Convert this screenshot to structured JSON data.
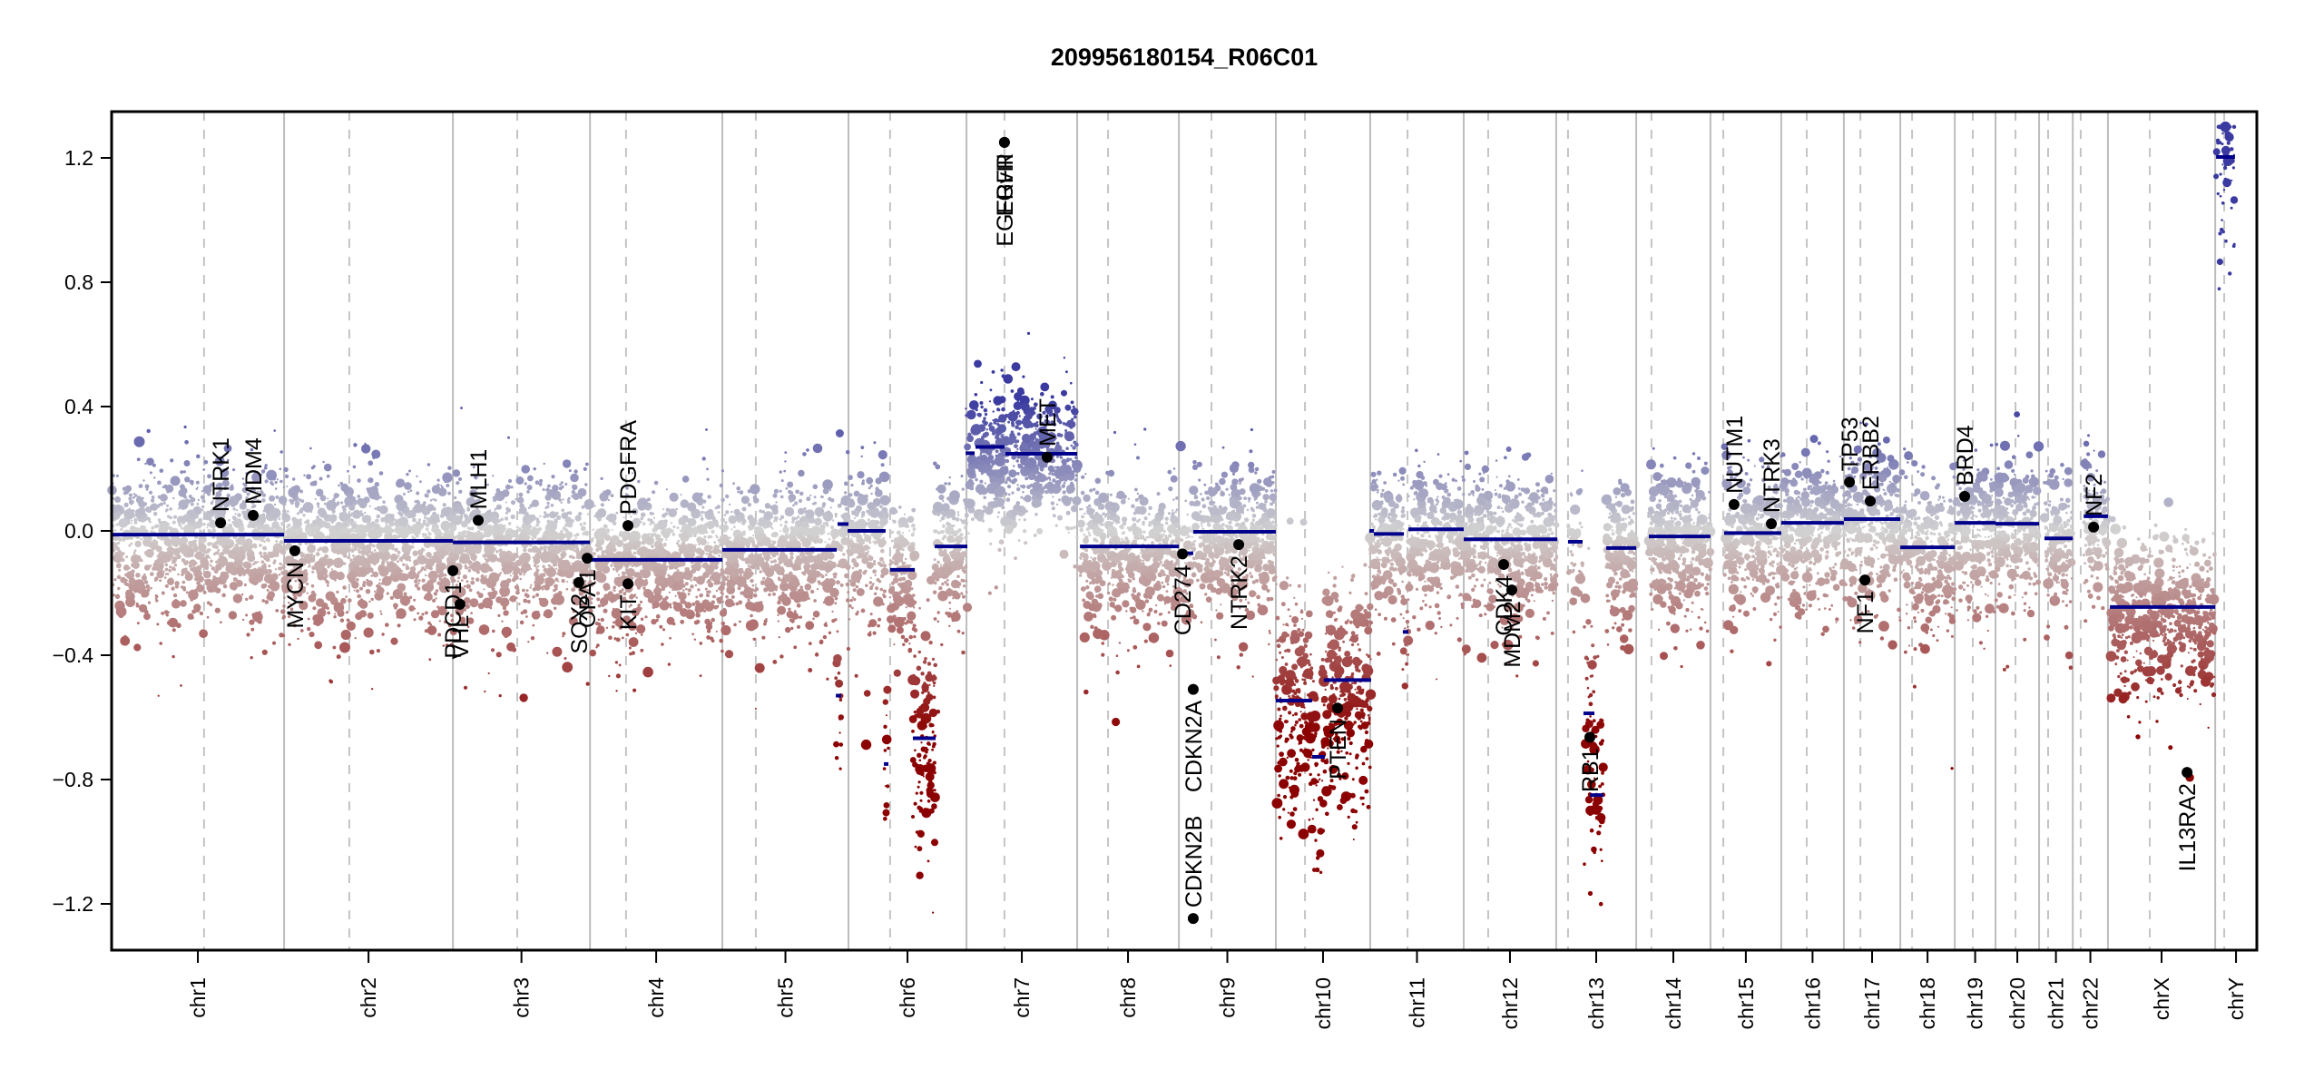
{
  "chart_data": {
    "type": "scatter",
    "title": "209956180154_R06C01",
    "xlabel": "",
    "ylabel": "",
    "ylim": [
      -1.35,
      1.35
    ],
    "yticks": [
      1.2,
      0.8,
      0.4,
      0.0,
      -0.4,
      -0.8,
      -1.2
    ],
    "ytick_labels": [
      "1.2",
      "0.8",
      "0.4",
      "0.0",
      "−0.4",
      "−0.8",
      "−1.2"
    ],
    "x_units": "relative genome position (0-1)",
    "colors": {
      "segment": "#00008b",
      "gain": "#3a3aa0",
      "neutral": "#d2d2d2",
      "loss": "#8b0000",
      "gene_marker": "#000000",
      "chromosome_separator": "#bdbdbd",
      "centromere": "#c4c4c4"
    },
    "chromosomes": [
      {
        "name": "chr1",
        "start": 0.0,
        "end": 0.0804,
        "centromere": 0.0431
      },
      {
        "name": "chr2",
        "start": 0.0804,
        "end": 0.1591,
        "centromere": 0.1108
      },
      {
        "name": "chr3",
        "start": 0.1591,
        "end": 0.223,
        "centromere": 0.1891
      },
      {
        "name": "chr4",
        "start": 0.223,
        "end": 0.2847,
        "centromere": 0.2398
      },
      {
        "name": "chr5",
        "start": 0.2847,
        "end": 0.3435,
        "centromere": 0.3003
      },
      {
        "name": "chr6",
        "start": 0.3435,
        "end": 0.3985,
        "centromere": 0.3629
      },
      {
        "name": "chr7",
        "start": 0.3985,
        "end": 0.4501,
        "centromere": 0.4162
      },
      {
        "name": "chr8",
        "start": 0.4501,
        "end": 0.4975,
        "centromere": 0.4645
      },
      {
        "name": "chr9",
        "start": 0.4975,
        "end": 0.5427,
        "centromere": 0.5127
      },
      {
        "name": "chr10",
        "start": 0.5427,
        "end": 0.5867,
        "centromere": 0.5563
      },
      {
        "name": "chr11",
        "start": 0.5867,
        "end": 0.6303,
        "centromere": 0.6041
      },
      {
        "name": "chr12",
        "start": 0.6303,
        "end": 0.6734,
        "centromere": 0.6417
      },
      {
        "name": "chr13",
        "start": 0.6734,
        "end": 0.7107,
        "centromere": 0.6789
      },
      {
        "name": "chr14",
        "start": 0.7107,
        "end": 0.7453,
        "centromere": 0.7178
      },
      {
        "name": "chr15",
        "start": 0.7453,
        "end": 0.7783,
        "centromere": 0.7513
      },
      {
        "name": "chr16",
        "start": 0.7783,
        "end": 0.8075,
        "centromere": 0.7902
      },
      {
        "name": "chr17",
        "start": 0.8075,
        "end": 0.8338,
        "centromere": 0.8152
      },
      {
        "name": "chr18",
        "start": 0.8338,
        "end": 0.8592,
        "centromere": 0.8393
      },
      {
        "name": "chr19",
        "start": 0.8592,
        "end": 0.8782,
        "centromere": 0.8676
      },
      {
        "name": "chr20",
        "start": 0.8782,
        "end": 0.8985,
        "centromere": 0.8875
      },
      {
        "name": "chr21",
        "start": 0.8985,
        "end": 0.9142,
        "centromere": 0.9027
      },
      {
        "name": "chr22",
        "start": 0.9142,
        "end": 0.9306,
        "centromere": 0.9179
      },
      {
        "name": "chrX",
        "start": 0.9306,
        "end": 0.9806,
        "centromere": 0.9501
      },
      {
        "name": "chrY",
        "start": 0.9806,
        "end": 1.0,
        "centromere": 0.9848
      }
    ],
    "segments": [
      {
        "chr": "chr1",
        "start": 0.0,
        "end": 0.0804,
        "value": -0.012
      },
      {
        "chr": "chr2",
        "start": 0.0804,
        "end": 0.1591,
        "value": -0.032
      },
      {
        "chr": "chr3",
        "start": 0.1591,
        "end": 0.223,
        "value": -0.037
      },
      {
        "chr": "chr4",
        "start": 0.223,
        "end": 0.2847,
        "value": -0.093
      },
      {
        "chr": "chr5",
        "start": 0.2847,
        "end": 0.338,
        "value": -0.061
      },
      {
        "chr": "chr5",
        "start": 0.3376,
        "end": 0.3401,
        "value": -0.53
      },
      {
        "chr": "chr5",
        "start": 0.3384,
        "end": 0.3435,
        "value": 0.022
      },
      {
        "chr": "chr6",
        "start": 0.3431,
        "end": 0.3608,
        "value": 0.0
      },
      {
        "chr": "chr6",
        "start": 0.36,
        "end": 0.3621,
        "value": -0.75
      },
      {
        "chr": "chr6",
        "start": 0.3629,
        "end": 0.3744,
        "value": -0.125
      },
      {
        "chr": "chr6",
        "start": 0.3735,
        "end": 0.3841,
        "value": -0.667
      },
      {
        "chr": "chr6",
        "start": 0.3837,
        "end": 0.3989,
        "value": -0.05
      },
      {
        "chr": "chr7",
        "start": 0.3981,
        "end": 0.4023,
        "value": 0.25
      },
      {
        "chr": "chr7",
        "start": 0.4027,
        "end": 0.4162,
        "value": 0.27
      },
      {
        "chr": "chr7",
        "start": 0.4167,
        "end": 0.4501,
        "value": 0.248
      },
      {
        "chr": "chr8",
        "start": 0.4514,
        "end": 0.4975,
        "value": -0.05
      },
      {
        "chr": "chr9",
        "start": 0.4975,
        "end": 0.5042,
        "value": -0.072
      },
      {
        "chr": "chr9",
        "start": 0.5042,
        "end": 0.5427,
        "value": -0.003
      },
      {
        "chr": "chr10",
        "start": 0.5427,
        "end": 0.5596,
        "value": -0.546
      },
      {
        "chr": "chr10",
        "start": 0.5596,
        "end": 0.5656,
        "value": -0.727
      },
      {
        "chr": "chr10",
        "start": 0.5651,
        "end": 0.5871,
        "value": -0.48
      },
      {
        "chr": "chr11",
        "start": 0.5863,
        "end": 0.5884,
        "value": 0.0
      },
      {
        "chr": "chr11",
        "start": 0.5884,
        "end": 0.6024,
        "value": -0.01
      },
      {
        "chr": "chr11",
        "start": 0.6019,
        "end": 0.6045,
        "value": -0.325
      },
      {
        "chr": "chr11",
        "start": 0.6045,
        "end": 0.6303,
        "value": 0.005
      },
      {
        "chr": "chr12",
        "start": 0.6303,
        "end": 0.6739,
        "value": -0.027
      },
      {
        "chr": "chr13",
        "start": 0.6789,
        "end": 0.6857,
        "value": -0.035
      },
      {
        "chr": "chr13",
        "start": 0.6861,
        "end": 0.6912,
        "value": -0.587
      },
      {
        "chr": "chr13",
        "start": 0.6891,
        "end": 0.6954,
        "value": -0.85
      },
      {
        "chr": "chr13",
        "start": 0.6967,
        "end": 0.7107,
        "value": -0.055
      },
      {
        "chr": "chr14",
        "start": 0.7166,
        "end": 0.7453,
        "value": -0.018
      },
      {
        "chr": "chr15",
        "start": 0.7517,
        "end": 0.7783,
        "value": -0.007
      },
      {
        "chr": "chr16",
        "start": 0.7783,
        "end": 0.8075,
        "value": 0.026
      },
      {
        "chr": "chr17",
        "start": 0.8075,
        "end": 0.8338,
        "value": 0.038
      },
      {
        "chr": "chr18",
        "start": 0.8338,
        "end": 0.8592,
        "value": -0.053
      },
      {
        "chr": "chr19",
        "start": 0.8592,
        "end": 0.8782,
        "value": 0.026
      },
      {
        "chr": "chr20",
        "start": 0.8782,
        "end": 0.8985,
        "value": 0.023
      },
      {
        "chr": "chr21",
        "start": 0.901,
        "end": 0.9142,
        "value": -0.024
      },
      {
        "chr": "chr22",
        "start": 0.9193,
        "end": 0.9306,
        "value": 0.047
      },
      {
        "chr": "chrX",
        "start": 0.9315,
        "end": 0.9806,
        "value": -0.245
      },
      {
        "chr": "chrY",
        "start": 0.981,
        "end": 0.9898,
        "value": 1.203
      }
    ],
    "genes": [
      {
        "name": "NTRK1",
        "x": 0.0508,
        "value": 0.026,
        "label": "above"
      },
      {
        "name": "MDM4",
        "x": 0.066,
        "value": 0.05,
        "label": "above"
      },
      {
        "name": "MYCN",
        "x": 0.0854,
        "value": -0.064,
        "label": "below"
      },
      {
        "name": "PDCD1",
        "x": 0.1591,
        "value": -0.128,
        "label": "below"
      },
      {
        "name": "VHL",
        "x": 0.1624,
        "value": -0.236,
        "label": "below"
      },
      {
        "name": "MLH1",
        "x": 0.1709,
        "value": 0.034,
        "label": "above"
      },
      {
        "name": "SOX2",
        "x": 0.2178,
        "value": -0.166,
        "label": "below"
      },
      {
        "name": "OPA1",
        "x": 0.2217,
        "value": -0.088,
        "label": "below"
      },
      {
        "name": "PDGFRA",
        "x": 0.2407,
        "value": 0.017,
        "label": "above"
      },
      {
        "name": "KIT",
        "x": 0.2407,
        "value": -0.17,
        "label": "below"
      },
      {
        "name": "EGFR",
        "x": 0.4162,
        "value": 1.25,
        "label": "below"
      },
      {
        "name": "EGFRvIII",
        "x": 0.4162,
        "value": 1.25,
        "label": "below"
      },
      {
        "name": "MET",
        "x": 0.4361,
        "value": 0.237,
        "label": "above"
      },
      {
        "name": "CD274",
        "x": 0.4992,
        "value": -0.074,
        "label": "below"
      },
      {
        "name": "CDKN2A",
        "x": 0.5042,
        "value": -0.51,
        "label": "below"
      },
      {
        "name": "CDKN2B",
        "x": 0.5042,
        "value": -1.247,
        "label": "above"
      },
      {
        "name": "NTRK2",
        "x": 0.5254,
        "value": -0.044,
        "label": "below"
      },
      {
        "name": "PTEN",
        "x": 0.5715,
        "value": -0.57,
        "label": "below"
      },
      {
        "name": "CDK4",
        "x": 0.6489,
        "value": -0.108,
        "label": "below"
      },
      {
        "name": "MDM2",
        "x": 0.6527,
        "value": -0.19,
        "label": "below"
      },
      {
        "name": "RB1",
        "x": 0.6891,
        "value": -0.664,
        "label": "below"
      },
      {
        "name": "NUTM1",
        "x": 0.7563,
        "value": 0.085,
        "label": "above"
      },
      {
        "name": "NTRK3",
        "x": 0.7737,
        "value": 0.023,
        "label": "above"
      },
      {
        "name": "TP53",
        "x": 0.8101,
        "value": 0.157,
        "label": "above"
      },
      {
        "name": "ERBB2",
        "x": 0.8198,
        "value": 0.096,
        "label": "above"
      },
      {
        "name": "NF1",
        "x": 0.8173,
        "value": -0.158,
        "label": "below"
      },
      {
        "name": "BRD4",
        "x": 0.8638,
        "value": 0.111,
        "label": "above"
      },
      {
        "name": "NF2",
        "x": 0.9239,
        "value": 0.012,
        "label": "above"
      },
      {
        "name": "IL13RA2",
        "x": 0.9675,
        "value": -0.777,
        "label": "below"
      }
    ],
    "probe_spread_sd": 0.11,
    "grid": false,
    "legend": "none"
  }
}
